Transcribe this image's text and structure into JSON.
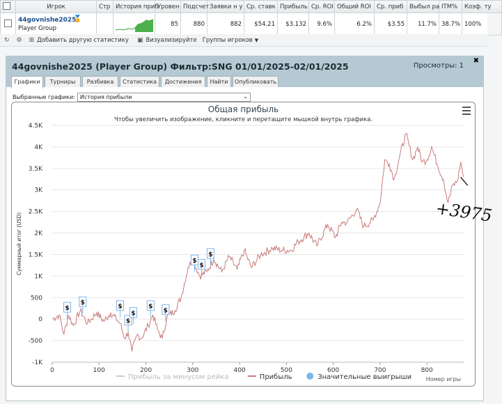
{
  "table": {
    "headers": [
      "Игрок",
      "Стр",
      "История приб",
      "Уровен",
      "Подсчет",
      "Заявки н у",
      "Ср. ставк",
      "Прибыль",
      "Ср. ROI",
      "Общий ROI",
      "Ср. приб",
      "Выбыл ра",
      "ITM%",
      "Коэф. ту"
    ],
    "row": {
      "player": "44govnishe2025",
      "group": "Player Group",
      "level": "85",
      "count": "880",
      "entries": "882",
      "avg_stake": "$54.21",
      "profit": "$3.132",
      "avg_roi": "9.6%",
      "total_roi": "6.2%",
      "avg_profit": "$3.55",
      "out_rate": "11.7%",
      "itm": "38.7%",
      "ratio": "100%"
    }
  },
  "actions": {
    "add_stats": "Добавить другую статистику",
    "visualize": "Визуализируйте",
    "groups": "Группы игроков"
  },
  "panel": {
    "title": "44govnishe2025 (Player Group) Фильтр:SNG 01/01/2025-02/01/2025",
    "views": "Просмотры: 1",
    "tabs": [
      "Графики",
      "Турниры",
      "Разбивка",
      "Статистика",
      "Достижения",
      "Найти",
      "Опубликовать"
    ],
    "select_label": "Выбранные графики:",
    "select_value": "История прибыли"
  },
  "chart_data": {
    "type": "line",
    "title": "Общая прибыль",
    "subtitle": "Чтобы увеличить изображение, кликните и перетащите мышкой внутрь графика.",
    "ylabel": "Суммарный итог (USD)",
    "xlabel": "Номер игры",
    "xlim": [
      0,
      880
    ],
    "ylim": [
      -1000,
      4500
    ],
    "yticks": [
      "-1K",
      "-500",
      "0",
      "500",
      "1K",
      "1.5K",
      "2K",
      "2.5K",
      "3K",
      "3.5K",
      "4K",
      "4.5K"
    ],
    "xticks": [
      "0",
      "100",
      "200",
      "300",
      "400",
      "500",
      "600",
      "700",
      "800"
    ],
    "series": [
      {
        "name": "Прибыль",
        "color": "#c97a7a",
        "points": [
          [
            0,
            0
          ],
          [
            15,
            100
          ],
          [
            25,
            -350
          ],
          [
            35,
            100
          ],
          [
            45,
            -150
          ],
          [
            60,
            200
          ],
          [
            75,
            -100
          ],
          [
            95,
            150
          ],
          [
            110,
            -50
          ],
          [
            125,
            150
          ],
          [
            145,
            -100
          ],
          [
            155,
            -450
          ],
          [
            162,
            -300
          ],
          [
            170,
            -750
          ],
          [
            182,
            -350
          ],
          [
            190,
            -450
          ],
          [
            205,
            -150
          ],
          [
            215,
            100
          ],
          [
            225,
            -250
          ],
          [
            235,
            -450
          ],
          [
            245,
            50
          ],
          [
            262,
            200
          ],
          [
            275,
            500
          ],
          [
            290,
            1200
          ],
          [
            300,
            1400
          ],
          [
            315,
            1000
          ],
          [
            330,
            1100
          ],
          [
            345,
            1400
          ],
          [
            362,
            1100
          ],
          [
            378,
            1450
          ],
          [
            395,
            1150
          ],
          [
            410,
            1600
          ],
          [
            425,
            1200
          ],
          [
            445,
            1500
          ],
          [
            470,
            1650
          ],
          [
            490,
            1600
          ],
          [
            510,
            1600
          ],
          [
            525,
            1800
          ],
          [
            548,
            2000
          ],
          [
            565,
            1700
          ],
          [
            588,
            2200
          ],
          [
            605,
            1900
          ],
          [
            618,
            2250
          ],
          [
            630,
            2250
          ],
          [
            650,
            2550
          ],
          [
            665,
            2150
          ],
          [
            685,
            2300
          ],
          [
            700,
            2700
          ],
          [
            710,
            3700
          ],
          [
            720,
            3600
          ],
          [
            730,
            3250
          ],
          [
            742,
            3800
          ],
          [
            755,
            4300
          ],
          [
            770,
            3700
          ],
          [
            780,
            4000
          ],
          [
            790,
            3650
          ],
          [
            800,
            3700
          ],
          [
            810,
            4000
          ],
          [
            822,
            3600
          ],
          [
            835,
            3250
          ],
          [
            845,
            2700
          ],
          [
            855,
            3100
          ],
          [
            865,
            3200
          ],
          [
            872,
            3650
          ],
          [
            878,
            3300
          ]
        ]
      }
    ],
    "legend": [
      {
        "name": "Прибыль за минусом рейка",
        "color": "#cccccc",
        "shape": "line"
      },
      {
        "name": "Прибыль",
        "color": "#c97a7a",
        "shape": "line"
      },
      {
        "name": "Значительные выигрыши",
        "color": "#7cb5ec",
        "shape": "dot"
      }
    ],
    "big_wins": [
      {
        "x": 32,
        "y": 0,
        "label": "$"
      },
      {
        "x": 65,
        "y": 130,
        "label": "$"
      },
      {
        "x": 145,
        "y": 40,
        "label": "$"
      },
      {
        "x": 162,
        "y": -300,
        "label": "$"
      },
      {
        "x": 173,
        "y": -120,
        "label": "$"
      },
      {
        "x": 210,
        "y": 40,
        "label": "$"
      },
      {
        "x": 242,
        "y": -50,
        "label": "$"
      },
      {
        "x": 304,
        "y": 1100,
        "label": "$"
      },
      {
        "x": 319,
        "y": 1000,
        "label": "$"
      },
      {
        "x": 338,
        "y": 1250,
        "label": "$"
      }
    ],
    "annotation": "+3975"
  }
}
